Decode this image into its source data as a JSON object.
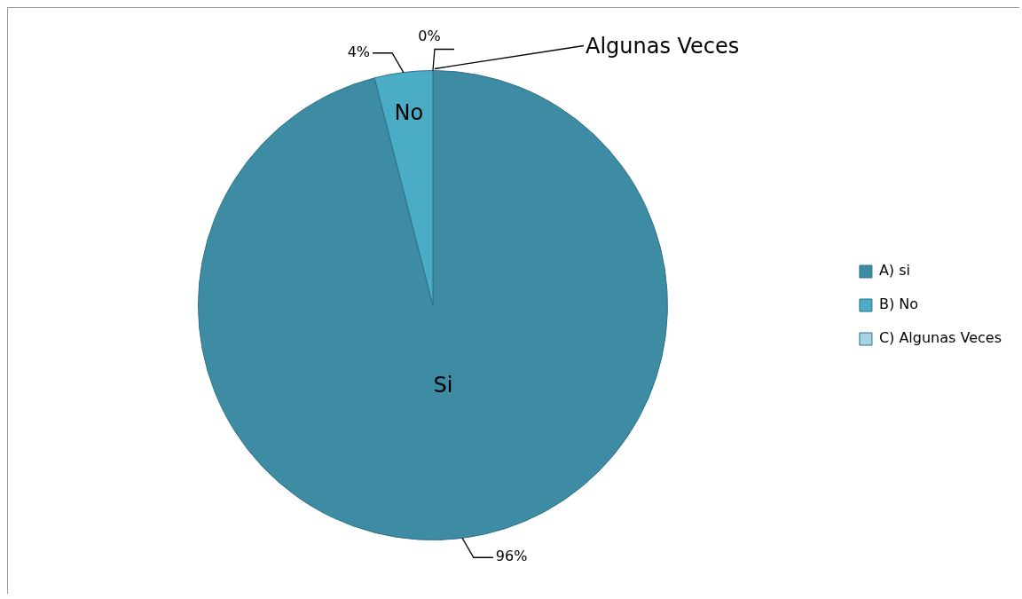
{
  "chart_data": {
    "type": "pie",
    "categories": [
      "A) si",
      "B) No",
      "C) Algunas Veces"
    ],
    "values": [
      96,
      4,
      0
    ],
    "colors": [
      "#3d8ca3",
      "#4bacc6",
      "#a5d5e2"
    ],
    "value_labels": [
      "96%",
      "4%",
      "0%"
    ],
    "annotations": [
      {
        "text": "Si",
        "x": "A) si"
      },
      {
        "text": "No",
        "x": "B) No"
      },
      {
        "text": "Algunas Veces",
        "x": "C) Algunas Veces"
      }
    ],
    "legend": "right"
  }
}
